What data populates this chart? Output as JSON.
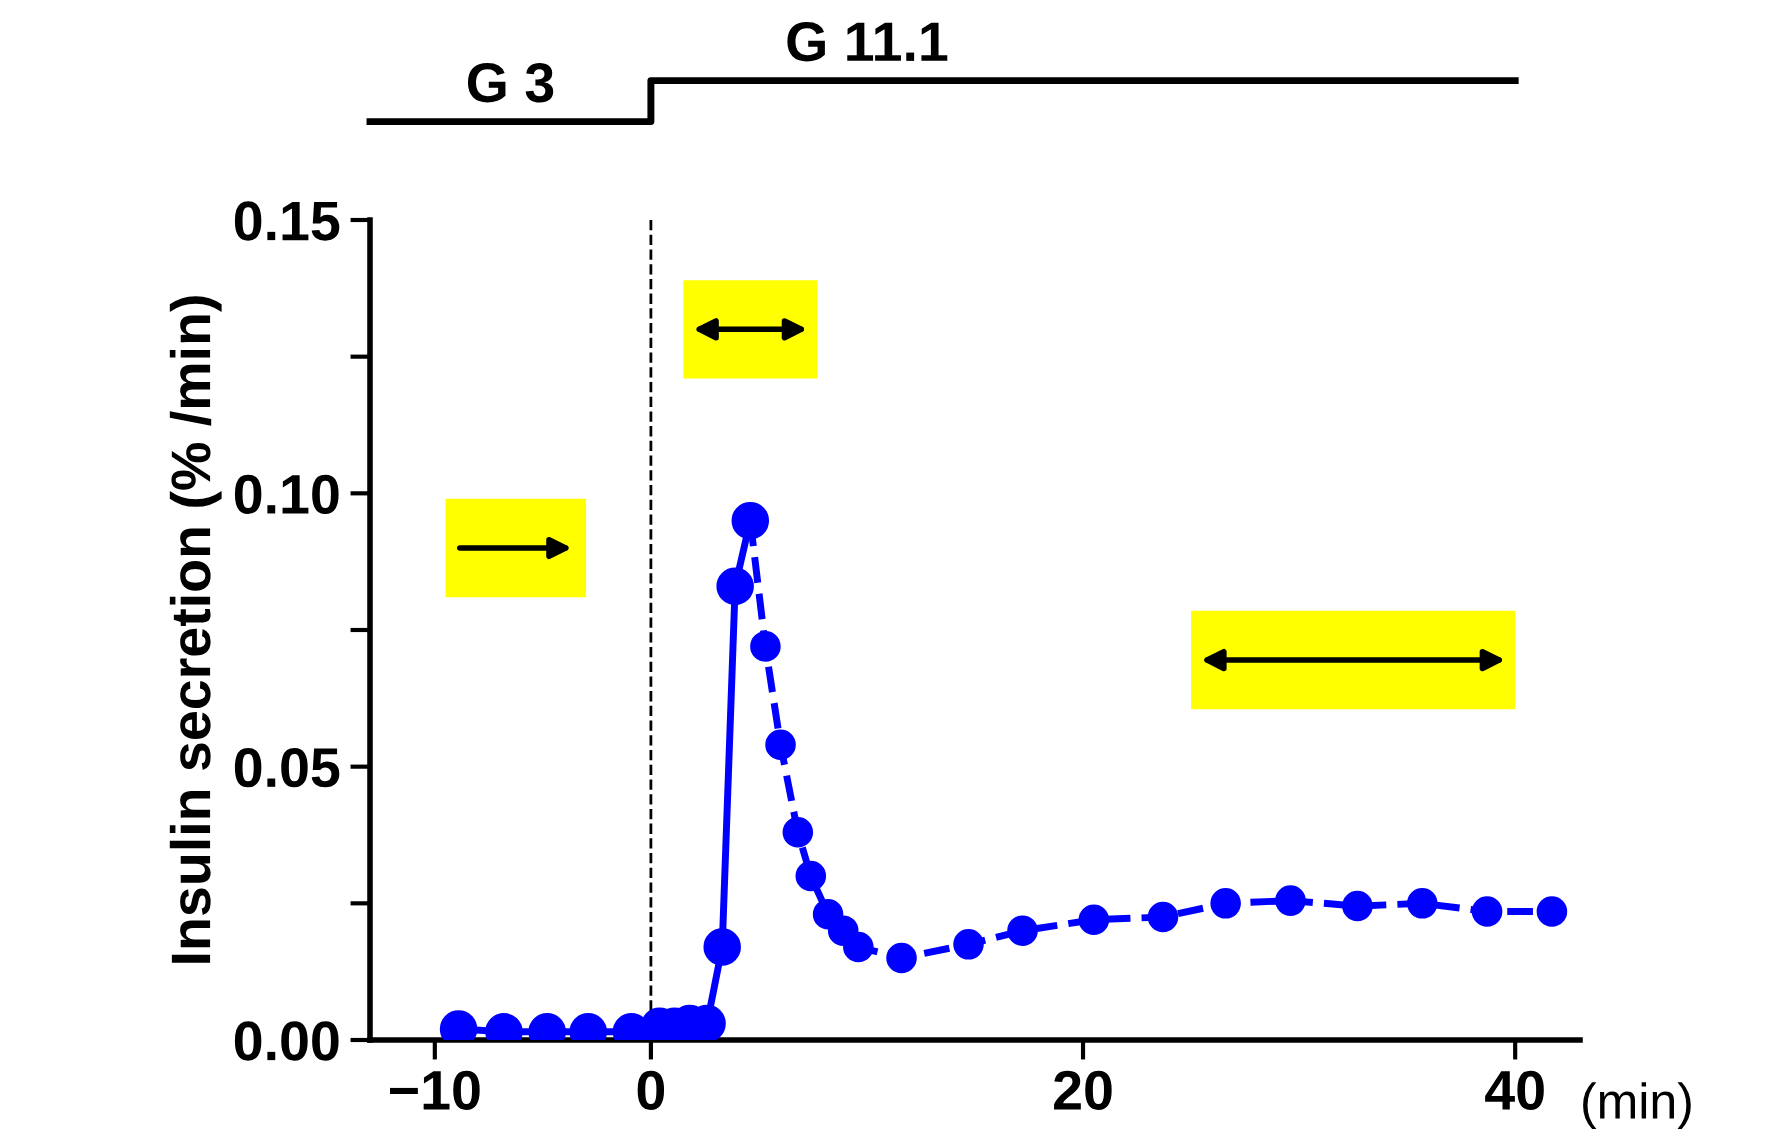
{
  "chart_data": {
    "type": "line",
    "ylabel": "Insulin secretion (% /min)",
    "xlabel": "(min)",
    "annotations": [
      "G 3",
      "G 11.1"
    ],
    "series": [
      {
        "color": "#0000ff",
        "line_style": "solid",
        "x": [
          -8.9,
          -6.8,
          -4.8,
          -2.9,
          -0.9,
          0.4,
          1.1,
          1.8,
          2.6,
          3.3,
          3.9,
          4.6
        ],
        "values": [
          0.002,
          0.0015,
          0.0015,
          0.0015,
          0.0015,
          0.0025,
          0.0025,
          0.003,
          0.003,
          0.017,
          0.083,
          0.095
        ]
      },
      {
        "color": "#0000ff",
        "line_style": "dashed",
        "x": [
          4.6,
          5.3,
          6.0,
          6.8,
          7.4,
          8.2,
          8.9,
          9.6,
          11.6,
          14.7,
          17.2,
          20.5,
          23.7,
          26.6,
          29.6,
          32.7,
          35.7,
          38.7,
          41.7
        ],
        "values": [
          0.095,
          0.072,
          0.054,
          0.038,
          0.03,
          0.023,
          0.02,
          0.017,
          0.015,
          0.0175,
          0.02,
          0.022,
          0.0225,
          0.025,
          0.0255,
          0.0245,
          0.025,
          0.0235,
          0.0235
        ]
      }
    ],
    "marker": "circle",
    "xlim": [
      -13,
      43
    ],
    "ylim": [
      0,
      0.15
    ],
    "xticks": [
      {
        "value": -10,
        "label": "−10"
      },
      0,
      20,
      40
    ],
    "yticks": [
      {
        "value": 0,
        "label": "0.00"
      },
      {
        "value": 0.025,
        "label": null
      },
      {
        "value": 0.05,
        "label": "0.05"
      },
      {
        "value": 0.075,
        "label": null
      },
      {
        "value": 0.1,
        "label": "0.10"
      },
      {
        "value": 0.125,
        "label": null
      },
      {
        "value": 0.15,
        "label": "0.15"
      }
    ],
    "ref_lines": [
      {
        "axis": "x",
        "value": 0,
        "color": "#000000",
        "line_style": "dashed"
      }
    ],
    "grid": false,
    "legend": false
  }
}
